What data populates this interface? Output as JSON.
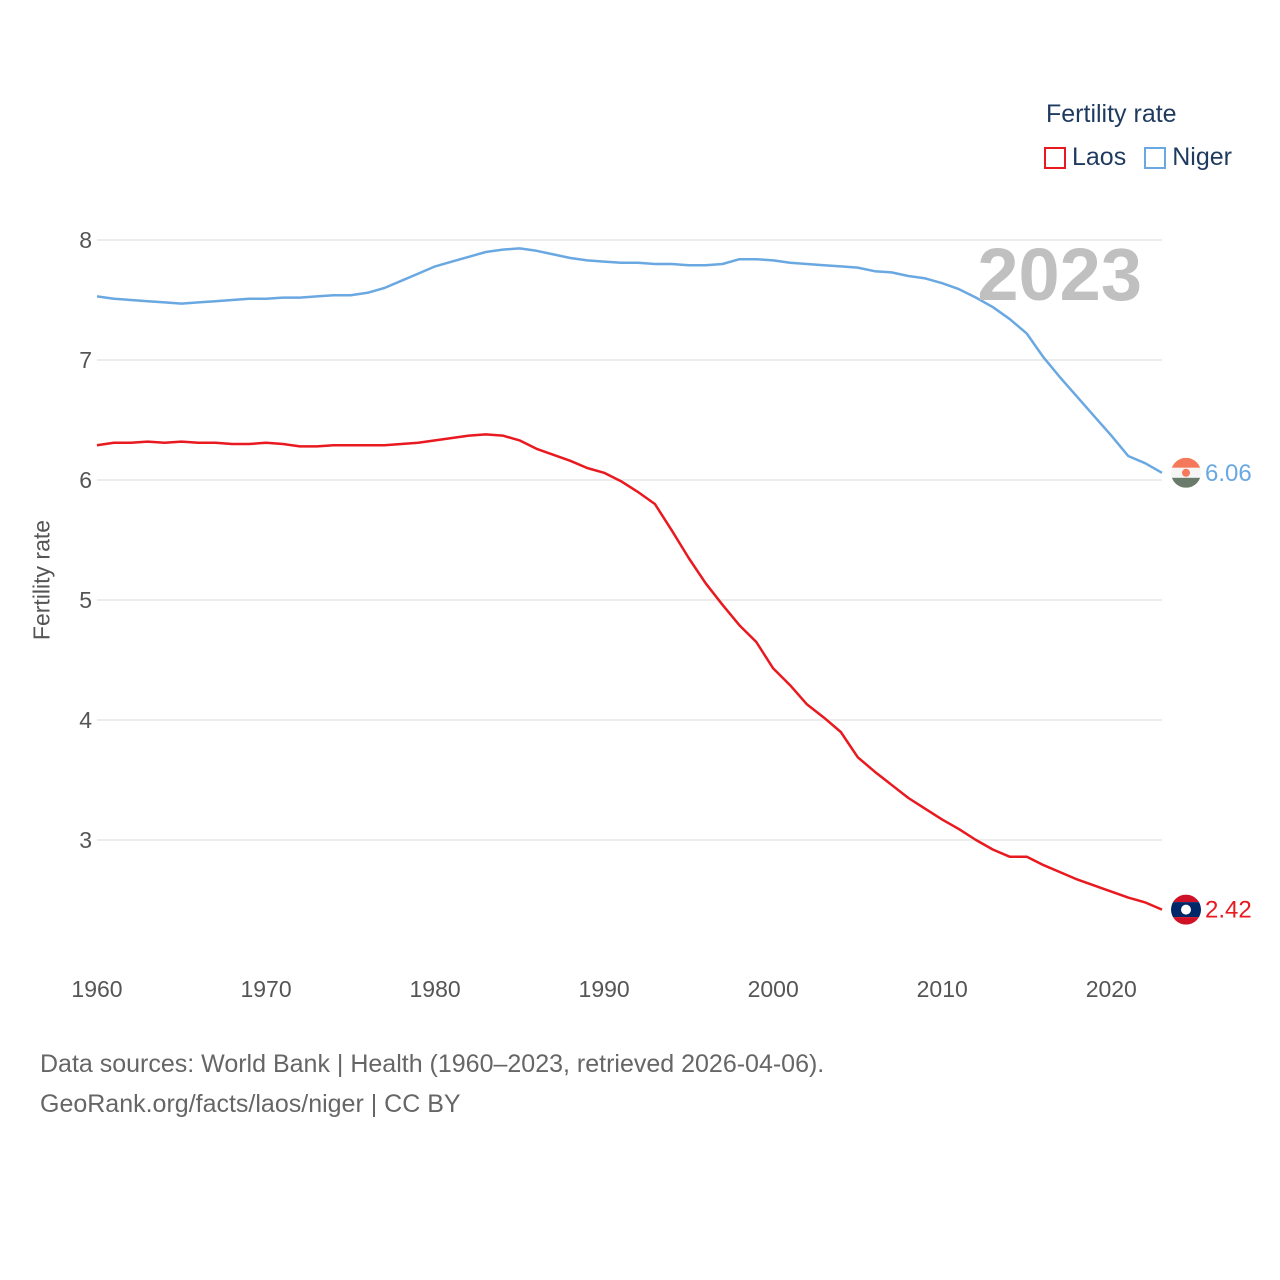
{
  "chart_data": {
    "type": "line",
    "title": "",
    "xlabel": "",
    "ylabel": "Fertility rate",
    "legend_title": "Fertility rate",
    "legend_position": "top-right",
    "year_stamp": "2023",
    "xlim": [
      1960,
      2023
    ],
    "ylim": [
      2.0,
      8.0
    ],
    "x_ticks": [
      "1960",
      "1970",
      "1980",
      "1990",
      "2000",
      "2010",
      "2020"
    ],
    "y_ticks": [
      "3",
      "4",
      "5",
      "6",
      "7",
      "8"
    ],
    "grid": true,
    "x": [
      1960,
      1961,
      1962,
      1963,
      1964,
      1965,
      1966,
      1967,
      1968,
      1969,
      1970,
      1971,
      1972,
      1973,
      1974,
      1975,
      1976,
      1977,
      1978,
      1979,
      1980,
      1981,
      1982,
      1983,
      1984,
      1985,
      1986,
      1987,
      1988,
      1989,
      1990,
      1991,
      1992,
      1993,
      1994,
      1995,
      1996,
      1997,
      1998,
      1999,
      2000,
      2001,
      2002,
      2003,
      2004,
      2005,
      2006,
      2007,
      2008,
      2009,
      2010,
      2011,
      2012,
      2013,
      2014,
      2015,
      2016,
      2017,
      2018,
      2019,
      2020,
      2021,
      2022,
      2023
    ],
    "series": [
      {
        "name": "Laos",
        "color": "#e8191f",
        "end_label": "2.42",
        "values": [
          6.29,
          6.31,
          6.31,
          6.32,
          6.31,
          6.32,
          6.31,
          6.31,
          6.3,
          6.3,
          6.31,
          6.3,
          6.28,
          6.28,
          6.29,
          6.29,
          6.29,
          6.29,
          6.3,
          6.31,
          6.33,
          6.35,
          6.37,
          6.38,
          6.37,
          6.33,
          6.26,
          6.21,
          6.16,
          6.1,
          6.06,
          5.99,
          5.9,
          5.8,
          5.58,
          5.35,
          5.14,
          4.96,
          4.79,
          4.65,
          4.43,
          4.29,
          4.13,
          4.02,
          3.9,
          3.69,
          3.57,
          3.46,
          3.35,
          3.26,
          3.17,
          3.09,
          3.0,
          2.92,
          2.86,
          2.86,
          2.79,
          2.73,
          2.67,
          2.62,
          2.57,
          2.52,
          2.48,
          2.42
        ]
      },
      {
        "name": "Niger",
        "color": "#6aa8e2",
        "end_label": "6.06",
        "values": [
          7.53,
          7.51,
          7.5,
          7.49,
          7.48,
          7.47,
          7.48,
          7.49,
          7.5,
          7.51,
          7.51,
          7.52,
          7.52,
          7.53,
          7.54,
          7.54,
          7.56,
          7.6,
          7.66,
          7.72,
          7.78,
          7.82,
          7.86,
          7.9,
          7.92,
          7.93,
          7.91,
          7.88,
          7.85,
          7.83,
          7.82,
          7.81,
          7.81,
          7.8,
          7.8,
          7.79,
          7.79,
          7.8,
          7.84,
          7.84,
          7.83,
          7.81,
          7.8,
          7.79,
          7.78,
          7.77,
          7.74,
          7.73,
          7.7,
          7.68,
          7.64,
          7.59,
          7.52,
          7.44,
          7.34,
          7.22,
          7.02,
          6.85,
          6.69,
          6.53,
          6.37,
          6.2,
          6.14,
          6.06
        ]
      }
    ]
  },
  "source": {
    "line1": "Data sources: World Bank | Health (1960–2023, retrieved 2026-04-06).",
    "line2": "GeoRank.org/facts/laos/niger | CC BY"
  }
}
